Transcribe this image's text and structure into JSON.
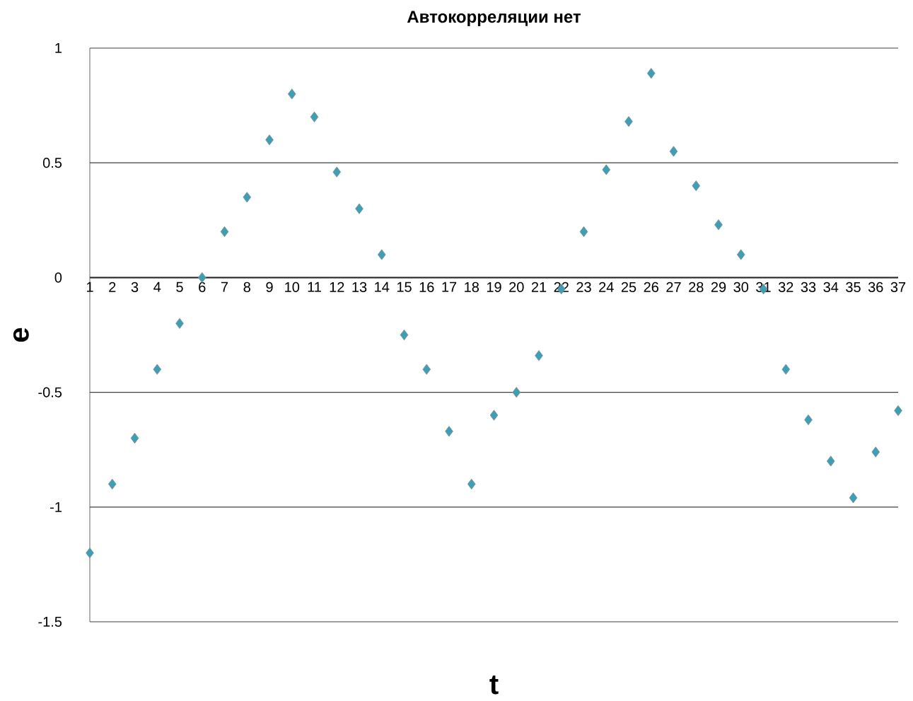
{
  "chart_data": {
    "type": "scatter",
    "title": "Автокорреляции нет",
    "xlabel": "t",
    "ylabel": "e",
    "x": [
      1,
      2,
      3,
      4,
      5,
      6,
      7,
      8,
      9,
      10,
      11,
      12,
      13,
      14,
      15,
      16,
      17,
      18,
      19,
      20,
      21,
      22,
      23,
      24,
      25,
      26,
      27,
      28,
      29,
      30,
      31,
      32,
      33,
      34,
      35,
      36,
      37
    ],
    "values": [
      -1.2,
      -0.9,
      -0.7,
      -0.4,
      -0.2,
      0,
      0.2,
      0.35,
      0.6,
      0.8,
      0.7,
      0.46,
      0.3,
      0.1,
      -0.25,
      -0.4,
      -0.67,
      -0.9,
      -0.6,
      -0.5,
      -0.34,
      -0.05,
      0.2,
      0.47,
      0.68,
      0.89,
      0.55,
      0.4,
      0.23,
      0.1,
      -0.05,
      -0.4,
      -0.62,
      -0.8,
      -0.96,
      -0.76,
      -0.58
    ],
    "color": "#3aa0b8",
    "marker": "diamond",
    "xlim": [
      1,
      37
    ],
    "xticks": [
      1,
      2,
      3,
      4,
      5,
      6,
      7,
      8,
      9,
      10,
      11,
      12,
      13,
      14,
      15,
      16,
      17,
      18,
      19,
      20,
      21,
      22,
      23,
      24,
      25,
      26,
      27,
      28,
      29,
      30,
      31,
      32,
      33,
      34,
      35,
      36,
      37
    ],
    "ylim": [
      -1.5,
      1
    ],
    "yticks": [
      -1.5,
      -1,
      -0.5,
      0,
      0.5,
      1
    ],
    "grid": "y"
  }
}
